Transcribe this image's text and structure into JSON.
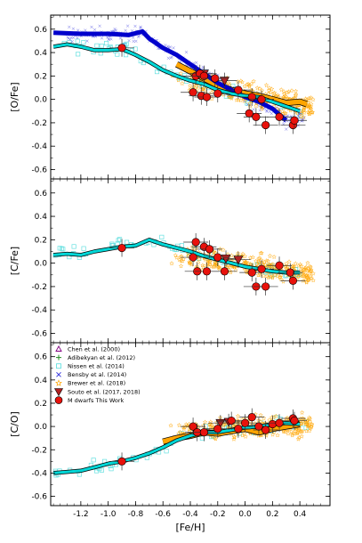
{
  "chart_data": {
    "type": "scatter",
    "xlabel": "[Fe/H]",
    "xlim": [
      -1.42,
      0.62
    ],
    "x_ticks": [
      "-1.2",
      "-1.0",
      "-0.8",
      "-0.6",
      "-0.4",
      "-0.2",
      "0.0",
      "0.2",
      "0.4"
    ],
    "x_tick_values": [
      -1.2,
      -1.0,
      -0.8,
      -0.6,
      -0.4,
      -0.2,
      0.0,
      0.2,
      0.4
    ],
    "colors": {
      "chen": "#800080",
      "adibekyan": "#228b22",
      "nissen": "#66e0e0",
      "bensby": "#3333dd",
      "brewer": "#ffa500",
      "souto": "#b22222",
      "mdwarfs": "#e8120c",
      "nissen_line": "#00d8d8",
      "bensby_line": "#0000cc",
      "brewer_line": "#ffa500"
    },
    "legend": [
      {
        "label": "Chen et al. (2000)",
        "marker": "triangle-open",
        "color": "#800080"
      },
      {
        "label": "Adibekyan et al. (2012)",
        "marker": "plus",
        "color": "#228b22"
      },
      {
        "label": "Nissen et al. (2014)",
        "marker": "square-open",
        "color": "#66e0e0"
      },
      {
        "label": "Bensby et al. (2014)",
        "marker": "cross",
        "color": "#3333dd"
      },
      {
        "label": "Brewer et al. (2018)",
        "marker": "star",
        "color": "#ffa500"
      },
      {
        "label": "Souto et al. (2017, 2018)",
        "marker": "triangle-down",
        "color": "#b22222"
      },
      {
        "label": "M dwarfs This Work",
        "marker": "circle",
        "color": "#e8120c"
      }
    ],
    "panels": [
      {
        "ylabel": "[O/Fe]",
        "ylim": [
          -0.68,
          0.72
        ],
        "y_ticks": [
          "0.6",
          "0.4",
          "0.2",
          "0.0",
          "-0.2",
          "-0.4",
          "-0.6"
        ],
        "y_tick_values": [
          0.6,
          0.4,
          0.2,
          0.0,
          -0.2,
          -0.4,
          -0.6
        ],
        "mdwarfs": [
          [
            -0.9,
            0.44
          ],
          [
            -0.38,
            0.06
          ],
          [
            -0.36,
            0.2
          ],
          [
            -0.33,
            0.22
          ],
          [
            -0.3,
            0.2
          ],
          [
            -0.32,
            0.03
          ],
          [
            -0.28,
            0.02
          ],
          [
            -0.22,
            0.18
          ],
          [
            -0.2,
            0.05
          ],
          [
            -0.05,
            0.08
          ],
          [
            0.03,
            -0.12
          ],
          [
            0.05,
            0.02
          ],
          [
            0.08,
            -0.15
          ],
          [
            0.12,
            0.0
          ],
          [
            0.15,
            -0.22
          ],
          [
            0.25,
            -0.15
          ],
          [
            0.35,
            -0.22
          ],
          [
            0.36,
            -0.18
          ]
        ],
        "souto": [
          [
            -0.3,
            0.22
          ],
          [
            -0.15,
            0.16
          ]
        ],
        "nissen_line": [
          [
            -1.4,
            0.45
          ],
          [
            -1.3,
            0.47
          ],
          [
            -1.2,
            0.45
          ],
          [
            -1.1,
            0.42
          ],
          [
            -1.0,
            0.42
          ],
          [
            -0.9,
            0.43
          ],
          [
            -0.8,
            0.38
          ],
          [
            -0.7,
            0.32
          ],
          [
            -0.6,
            0.25
          ],
          [
            -0.5,
            0.2
          ],
          [
            -0.4,
            0.16
          ],
          [
            -0.3,
            0.13
          ],
          [
            -0.2,
            0.08
          ],
          [
            -0.1,
            0.05
          ],
          [
            0.0,
            0.03
          ],
          [
            0.1,
            0.02
          ],
          [
            0.2,
            -0.02
          ],
          [
            0.3,
            -0.06
          ],
          [
            0.4,
            -0.1
          ]
        ],
        "bensby_line": [
          [
            -1.4,
            0.57
          ],
          [
            -1.2,
            0.56
          ],
          [
            -1.0,
            0.56
          ],
          [
            -0.85,
            0.55
          ],
          [
            -0.75,
            0.58
          ],
          [
            -0.7,
            0.52
          ],
          [
            -0.6,
            0.44
          ],
          [
            -0.5,
            0.38
          ],
          [
            -0.4,
            0.3
          ],
          [
            -0.3,
            0.22
          ],
          [
            -0.2,
            0.14
          ],
          [
            -0.1,
            0.08
          ],
          [
            0.0,
            0.02
          ],
          [
            0.1,
            -0.02
          ],
          [
            0.2,
            -0.08
          ],
          [
            0.3,
            -0.18
          ]
        ],
        "brewer_line": [
          [
            -0.5,
            0.3
          ],
          [
            -0.4,
            0.24
          ],
          [
            -0.3,
            0.18
          ],
          [
            -0.2,
            0.12
          ],
          [
            -0.1,
            0.08
          ],
          [
            0.0,
            0.05
          ],
          [
            0.1,
            0.03
          ],
          [
            0.2,
            0.0
          ],
          [
            0.3,
            -0.03
          ],
          [
            0.4,
            -0.02
          ],
          [
            0.45,
            -0.04
          ]
        ]
      },
      {
        "ylabel": "[C/Fe]",
        "ylim": [
          -0.68,
          0.72
        ],
        "y_ticks": [
          "0.6",
          "0.4",
          "0.2",
          "0.0",
          "-0.2",
          "-0.4",
          "-0.6"
        ],
        "y_tick_values": [
          0.6,
          0.4,
          0.2,
          0.0,
          -0.2,
          -0.4,
          -0.6
        ],
        "mdwarfs": [
          [
            -0.9,
            0.13
          ],
          [
            -0.38,
            0.05
          ],
          [
            -0.36,
            0.18
          ],
          [
            -0.35,
            -0.07
          ],
          [
            -0.3,
            0.14
          ],
          [
            -0.28,
            -0.07
          ],
          [
            -0.26,
            0.12
          ],
          [
            -0.2,
            0.05
          ],
          [
            -0.15,
            -0.07
          ],
          [
            0.05,
            -0.08
          ],
          [
            0.08,
            -0.2
          ],
          [
            0.12,
            -0.05
          ],
          [
            0.15,
            -0.2
          ],
          [
            0.25,
            -0.02
          ],
          [
            0.33,
            -0.08
          ],
          [
            0.35,
            -0.15
          ]
        ],
        "souto": [
          [
            -0.14,
            0.04
          ],
          [
            -0.05,
            0.03
          ]
        ],
        "nissen_line": [
          [
            -1.4,
            0.07
          ],
          [
            -1.3,
            0.08
          ],
          [
            -1.2,
            0.07
          ],
          [
            -1.1,
            0.1
          ],
          [
            -1.0,
            0.12
          ],
          [
            -0.9,
            0.14
          ],
          [
            -0.8,
            0.15
          ],
          [
            -0.7,
            0.2
          ],
          [
            -0.6,
            0.16
          ],
          [
            -0.5,
            0.13
          ],
          [
            -0.4,
            0.1
          ],
          [
            -0.3,
            0.06
          ],
          [
            -0.2,
            0.03
          ],
          [
            -0.1,
            0.0
          ],
          [
            0.0,
            -0.03
          ],
          [
            0.1,
            -0.05
          ],
          [
            0.2,
            -0.07
          ],
          [
            0.3,
            -0.08
          ],
          [
            0.4,
            -0.08
          ]
        ],
        "brewer_line": []
      },
      {
        "ylabel": "[C/O]",
        "ylim": [
          -0.68,
          0.72
        ],
        "y_ticks": [
          "0.6",
          "0.4",
          "0.2",
          "0.0",
          "-0.2",
          "-0.4",
          "-0.6"
        ],
        "y_tick_values": [
          0.6,
          0.4,
          0.2,
          0.0,
          -0.2,
          -0.4,
          -0.6
        ],
        "mdwarfs": [
          [
            -0.9,
            -0.3
          ],
          [
            -0.38,
            0.0
          ],
          [
            -0.35,
            -0.05
          ],
          [
            -0.3,
            -0.05
          ],
          [
            -0.2,
            -0.02
          ],
          [
            -0.1,
            0.05
          ],
          [
            -0.05,
            -0.02
          ],
          [
            0.0,
            0.03
          ],
          [
            0.05,
            0.08
          ],
          [
            0.1,
            0.0
          ],
          [
            0.15,
            -0.03
          ],
          [
            0.2,
            0.02
          ],
          [
            0.25,
            0.03
          ],
          [
            0.35,
            0.07
          ],
          [
            0.36,
            0.05
          ]
        ],
        "souto": [
          [
            -0.18,
            0.03
          ],
          [
            -0.12,
            0.04
          ]
        ],
        "nissen_line": [
          [
            -1.4,
            -0.4
          ],
          [
            -1.3,
            -0.39
          ],
          [
            -1.2,
            -0.38
          ],
          [
            -1.1,
            -0.35
          ],
          [
            -1.0,
            -0.32
          ],
          [
            -0.9,
            -0.3
          ],
          [
            -0.8,
            -0.27
          ],
          [
            -0.7,
            -0.23
          ],
          [
            -0.6,
            -0.18
          ],
          [
            -0.5,
            -0.12
          ],
          [
            -0.4,
            -0.08
          ],
          [
            -0.3,
            -0.05
          ],
          [
            -0.2,
            -0.05
          ],
          [
            -0.1,
            -0.03
          ],
          [
            0.0,
            -0.01
          ],
          [
            0.1,
            0.0
          ],
          [
            0.2,
            0.02
          ],
          [
            0.3,
            0.03
          ],
          [
            0.4,
            0.02
          ]
        ],
        "brewer_line": [
          [
            -0.6,
            -0.13
          ],
          [
            -0.5,
            -0.1
          ],
          [
            -0.4,
            -0.08
          ],
          [
            -0.3,
            -0.05
          ],
          [
            -0.2,
            -0.06
          ],
          [
            -0.1,
            -0.04
          ],
          [
            0.0,
            -0.02
          ],
          [
            0.1,
            -0.05
          ],
          [
            0.2,
            -0.02
          ],
          [
            0.3,
            0.0
          ],
          [
            0.4,
            0.02
          ]
        ]
      }
    ]
  }
}
